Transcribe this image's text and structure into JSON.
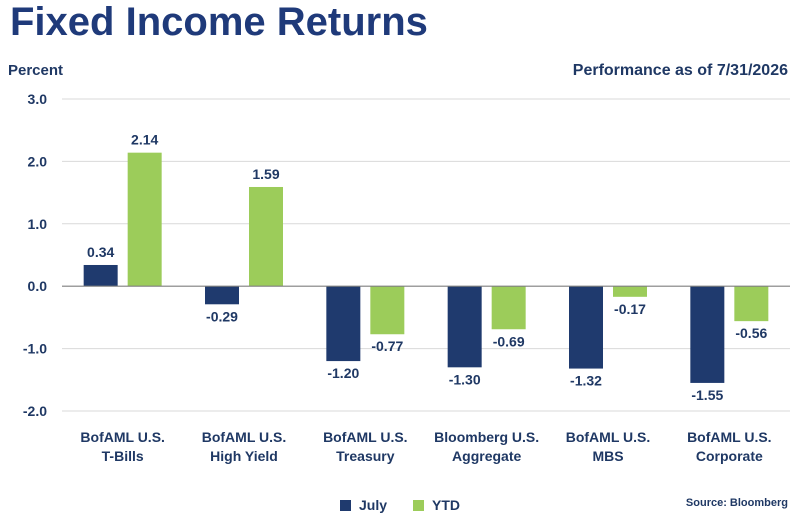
{
  "colors": {
    "july": "#1f3a6e",
    "ytd": "#9ccc5a",
    "grid": "#d9d9d9",
    "text": "#1f3864"
  },
  "chart_data": {
    "type": "bar",
    "title": "Fixed Income Returns",
    "subtitle": "Performance as of 7/31/2026",
    "ylabel": "Percent",
    "xlabel": "",
    "ylim": [
      -2.0,
      3.0
    ],
    "yticks": [
      "3.0",
      "2.0",
      "1.0",
      "0.0",
      "-1.0",
      "-2.0"
    ],
    "ytick_values": [
      3,
      2,
      1,
      0,
      -1,
      -2
    ],
    "grid": true,
    "legend_position": "bottom",
    "categories": [
      [
        "BofAML U.S.",
        "T-Bills"
      ],
      [
        "BofAML U.S.",
        "High Yield"
      ],
      [
        "BofAML U.S.",
        "Treasury"
      ],
      [
        "Bloomberg U.S.",
        "Aggregate"
      ],
      [
        "BofAML U.S.",
        "MBS"
      ],
      [
        "BofAML U.S.",
        "Corporate"
      ]
    ],
    "series": [
      {
        "name": "July",
        "values": [
          0.34,
          -0.29,
          -1.2,
          -1.3,
          -1.32,
          -1.55
        ],
        "labels": [
          "0.34",
          "-0.29",
          "-1.20",
          "-1.30",
          "-1.32",
          "-1.55"
        ]
      },
      {
        "name": "YTD",
        "values": [
          2.14,
          1.59,
          -0.77,
          -0.69,
          -0.17,
          -0.56
        ],
        "labels": [
          "2.14",
          "1.59",
          "-0.77",
          "-0.69",
          "-0.17",
          "-0.56"
        ]
      }
    ],
    "source": "Source: Bloomberg"
  }
}
